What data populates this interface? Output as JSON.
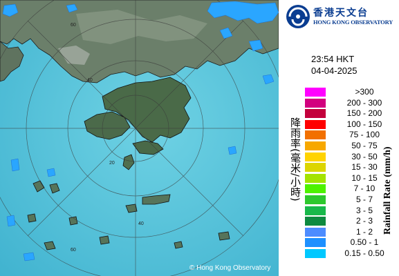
{
  "map": {
    "copyright": "© Hong Kong Observatory",
    "range_ring_labels": [
      "60",
      "60",
      "40",
      "40",
      "20"
    ],
    "colors": {
      "sea": "#4fc0d6",
      "land": "#4e6e50",
      "echo": "#28a8ff"
    }
  },
  "panel": {
    "logo_cn": "香港天文台",
    "logo_en": "HONG KONG OBSERVATORY",
    "time": "23:54 HKT",
    "date": "04-04-2025",
    "title_cn": "降雨率(毫米/小時)",
    "title_en": "Rainfall Rate (mm/h)"
  },
  "legend": [
    {
      "label": ">300",
      "color": "#ff00ff"
    },
    {
      "label": "200 - 300",
      "color": "#d2007f"
    },
    {
      "label": "150 - 200",
      "color": "#c3003c"
    },
    {
      "label": "100 - 150",
      "color": "#ff0000"
    },
    {
      "label": "75 - 100",
      "color": "#f27000"
    },
    {
      "label": "50 - 75",
      "color": "#f7a800"
    },
    {
      "label": "30 - 50",
      "color": "#ffd300"
    },
    {
      "label": "15 - 30",
      "color": "#dcd500"
    },
    {
      "label": "10 - 15",
      "color": "#a4e300"
    },
    {
      "label": "7 - 10",
      "color": "#4ef200"
    },
    {
      "label": "5 - 7",
      "color": "#2dc82d"
    },
    {
      "label": "3 - 5",
      "color": "#18b84a"
    },
    {
      "label": "2 - 3",
      "color": "#0e8a40"
    },
    {
      "label": "1 - 2",
      "color": "#4d8cff"
    },
    {
      "label": "0.50 - 1",
      "color": "#1e90ff"
    },
    {
      "label": "0.15 - 0.50",
      "color": "#00c8ff"
    }
  ]
}
